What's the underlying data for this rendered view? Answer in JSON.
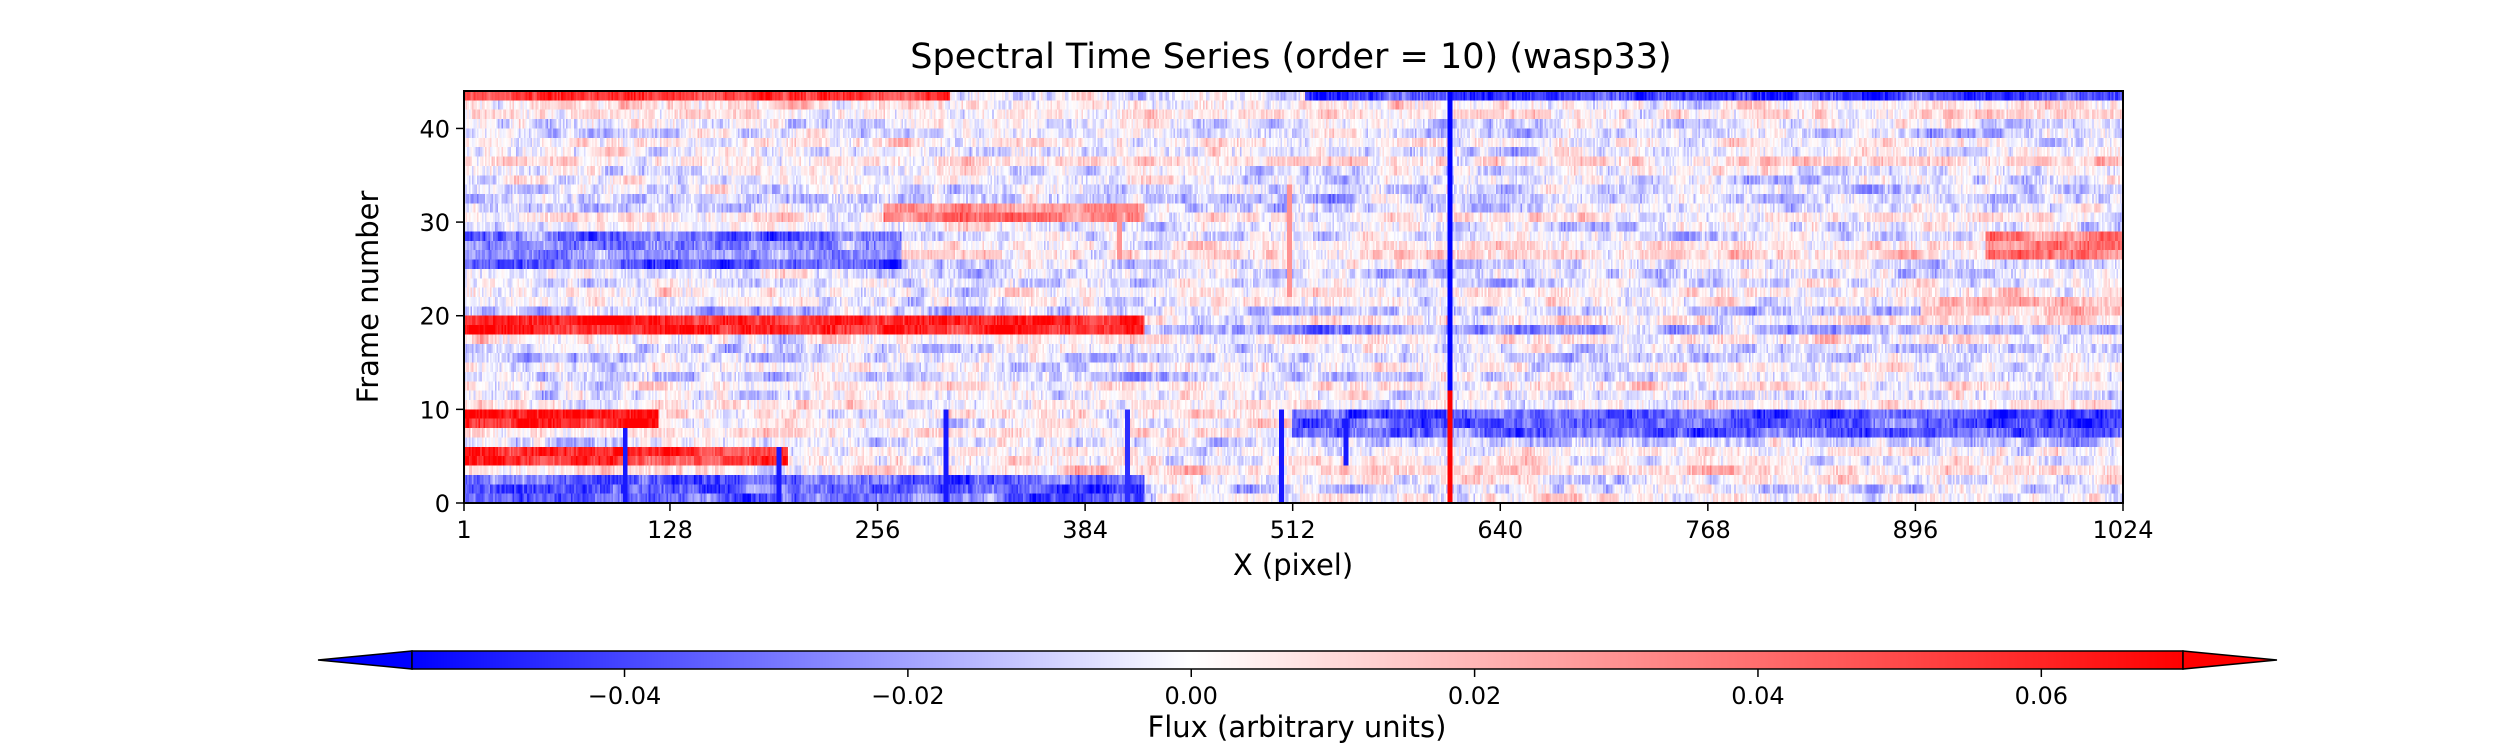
{
  "chart_data": {
    "type": "heatmap",
    "title": "Spectral Time Series (order = 10) (wasp33)",
    "xlabel": "X (pixel)",
    "ylabel": "Frame number",
    "xlim": [
      1,
      1024
    ],
    "ylim": [
      0,
      44
    ],
    "x_ticks": [
      1,
      128,
      256,
      384,
      512,
      640,
      768,
      896,
      1024
    ],
    "y_ticks": [
      0,
      10,
      20,
      30,
      40
    ],
    "grid": false,
    "colormap": "bwr",
    "colorbar": {
      "label": "Flux (arbitrary units)",
      "orientation": "horizontal",
      "placement": "bottom",
      "range": [
        -0.055,
        0.07
      ],
      "extend": "both",
      "ticks": [
        -0.04,
        -0.02,
        0.0,
        0.02,
        0.04,
        0.06
      ],
      "tick_labels": [
        "−0.04",
        "−0.02",
        "0.00",
        "0.02",
        "0.04",
        "0.06"
      ]
    },
    "colors": {
      "negative": "#0000ff",
      "zero": "#ffffff",
      "positive": "#ff0000"
    },
    "frames": 44,
    "pixels": 1024,
    "row_offsets": [
      {
        "frames": [
          43
        ],
        "x_range": [
          1,
          300
        ],
        "value": 0.06
      },
      {
        "frames": [
          43
        ],
        "x_range": [
          520,
          1024
        ],
        "value": -0.035
      },
      {
        "frames": [
          31,
          30
        ],
        "x_range": [
          260,
          420
        ],
        "value": 0.035
      },
      {
        "frames": [
          28,
          27,
          26,
          25
        ],
        "x_range": [
          1,
          270
        ],
        "value": -0.03
      },
      {
        "frames": [
          28,
          27,
          26
        ],
        "x_range": [
          940,
          1024
        ],
        "value": 0.03
      },
      {
        "frames": [
          21,
          20
        ],
        "x_range": [
          900,
          1024
        ],
        "value": 0.025
      },
      {
        "frames": [
          19,
          18
        ],
        "x_range": [
          1,
          420
        ],
        "value": 0.055
      },
      {
        "frames": [
          18
        ],
        "x_range": [
          420,
          1024
        ],
        "value": -0.025
      },
      {
        "frames": [
          9,
          8
        ],
        "x_range": [
          1,
          120
        ],
        "value": 0.06
      },
      {
        "frames": [
          9,
          8,
          7
        ],
        "x_range": [
          512,
          1024
        ],
        "value": -0.04
      },
      {
        "frames": [
          5,
          4
        ],
        "x_range": [
          1,
          200
        ],
        "value": 0.055
      },
      {
        "frames": [
          2,
          1,
          0
        ],
        "x_range": [
          1,
          420
        ],
        "value": -0.035
      }
    ],
    "column_features": [
      {
        "x": 609,
        "value": -0.06,
        "frames": [
          12,
          44
        ]
      },
      {
        "x": 609,
        "value": 0.07,
        "frames": [
          0,
          12
        ]
      },
      {
        "x": 100,
        "value": -0.05,
        "frames": [
          0,
          8
        ]
      },
      {
        "x": 195,
        "value": -0.05,
        "frames": [
          0,
          6
        ]
      },
      {
        "x": 298,
        "value": -0.05,
        "frames": [
          0,
          10
        ]
      },
      {
        "x": 410,
        "value": -0.045,
        "frames": [
          0,
          10
        ]
      },
      {
        "x": 505,
        "value": -0.05,
        "frames": [
          0,
          10
        ]
      },
      {
        "x": 545,
        "value": -0.05,
        "frames": [
          4,
          9
        ]
      },
      {
        "x": 405,
        "value": 0.03,
        "frames": [
          26,
          32
        ]
      },
      {
        "x": 510,
        "value": 0.03,
        "frames": [
          22,
          34
        ]
      }
    ]
  }
}
